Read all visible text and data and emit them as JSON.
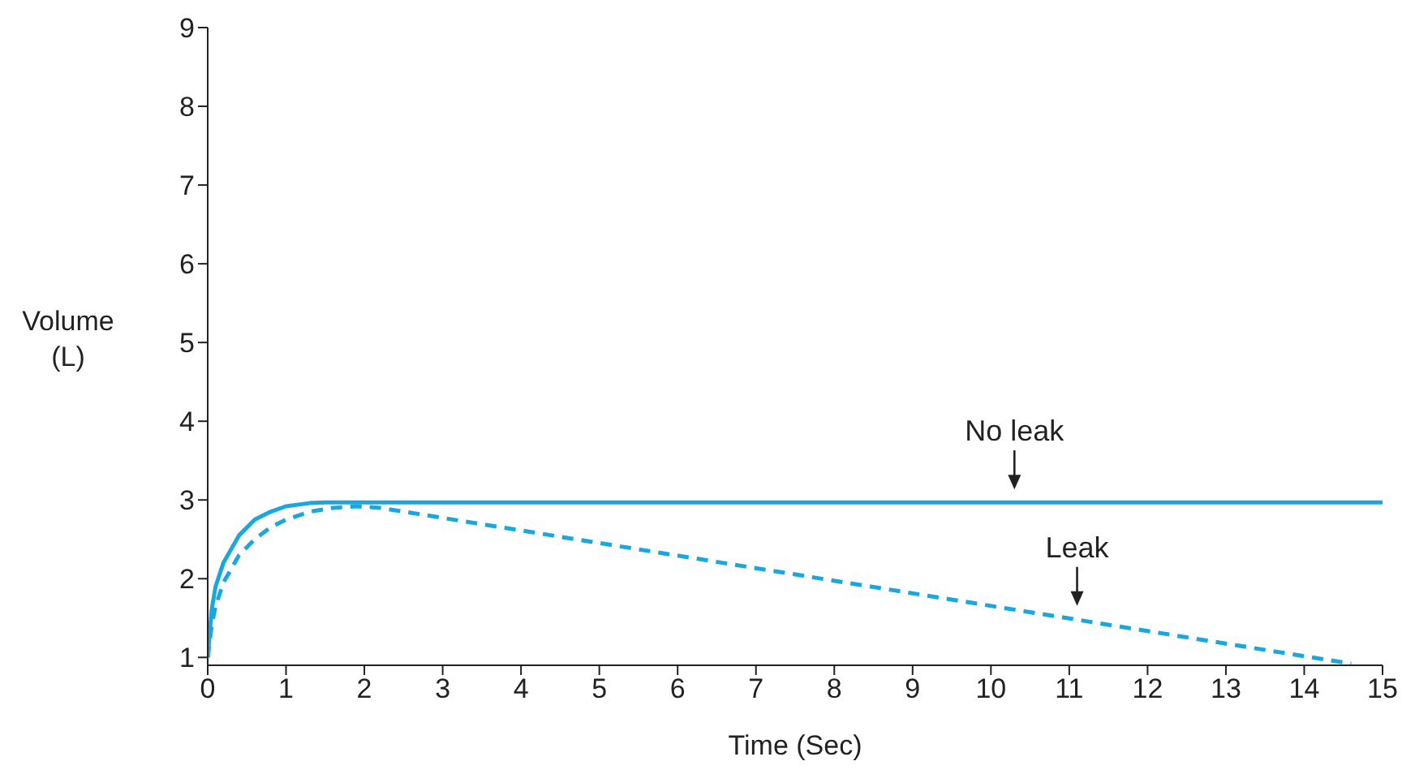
{
  "chart_data": {
    "type": "line",
    "xlabel": "Time (Sec)",
    "ylabel": "Volume (L)",
    "xlim": [
      0,
      15
    ],
    "xticks": [
      0,
      1,
      2,
      3,
      4,
      5,
      6,
      7,
      8,
      9,
      10,
      11,
      12,
      13,
      14,
      15
    ],
    "ylim": [
      0.9,
      9
    ],
    "yticks": [
      1,
      2,
      3,
      4,
      5,
      6,
      7,
      8,
      9
    ],
    "grid": false,
    "marker": "none",
    "series": [
      {
        "color": "#1aa7e0",
        "line_style": "solid",
        "x": [
          0,
          0.05,
          0.1,
          0.2,
          0.4,
          0.6,
          0.8,
          1.0,
          1.3,
          1.5,
          15
        ],
        "values": [
          1,
          1.6,
          1.9,
          2.2,
          2.55,
          2.75,
          2.85,
          2.92,
          2.96,
          2.97,
          2.97
        ]
      },
      {
        "color": "#1aa7e0",
        "line_style": "dashed",
        "x": [
          0,
          0.05,
          0.1,
          0.2,
          0.4,
          0.6,
          0.8,
          1.0,
          1.3,
          1.6,
          1.9,
          2.2,
          14.6
        ],
        "values": [
          1,
          1.4,
          1.65,
          1.95,
          2.3,
          2.5,
          2.65,
          2.75,
          2.85,
          2.9,
          2.92,
          2.9,
          0.92
        ]
      }
    ],
    "annotations": [
      {
        "text": "No leak",
        "x": 10.3,
        "y": 2.97
      },
      {
        "text": "Leak",
        "x": 11.1,
        "y": 1.49
      }
    ]
  }
}
